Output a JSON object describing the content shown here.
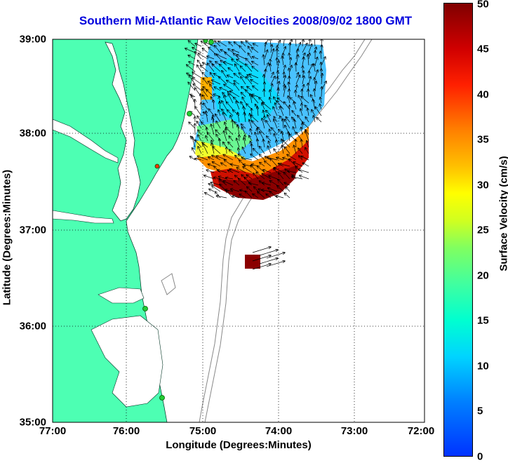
{
  "title": "Southern Mid-Atlantic Raw Velocities 2008/09/02 1800 GMT",
  "xlabel": "Longitude (Degrees:Minutes)",
  "ylabel": "Latitude (Degrees:Minutes)",
  "x_ticks": [
    "77:00",
    "76:00",
    "75:00",
    "74:00",
    "73:00",
    "72:00"
  ],
  "y_ticks": [
    "39:00",
    "38:00",
    "37:00",
    "36:00",
    "35:00"
  ],
  "colorbar": {
    "label": "Surface Velocity (cm/s)",
    "ticks": [
      "50",
      "45",
      "40",
      "35",
      "30",
      "25",
      "20",
      "15",
      "10",
      "5",
      "0"
    ],
    "range": [
      0,
      50
    ]
  },
  "colors": {
    "land": "#4dffb3",
    "water": "#ffffff",
    "title": "#0000dd",
    "station": "#22cc33"
  }
}
